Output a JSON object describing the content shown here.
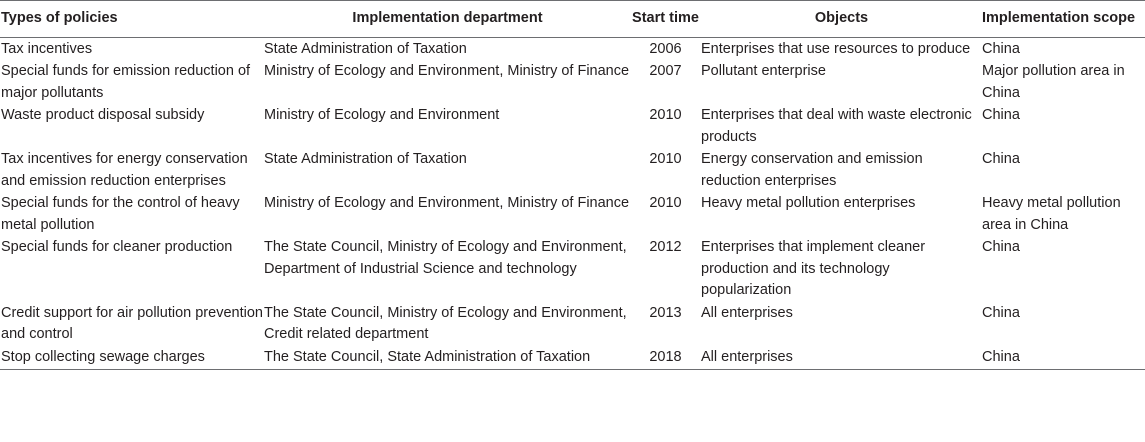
{
  "table": {
    "headers": {
      "type": "Types of policies",
      "department": "Implementation department",
      "start_time": "Start time",
      "objects": "Objects",
      "scope": "Implementation scope"
    },
    "rows": [
      {
        "type": "Tax incentives",
        "department": "State Administration of Taxation",
        "start_time": "2006",
        "objects": "Enterprises that use resources to produce",
        "scope": "China"
      },
      {
        "type": "Special funds for emission reduction of major pollutants",
        "department": "Ministry of Ecology and Environment, Ministry of Finance",
        "start_time": "2007",
        "objects": "Pollutant enterprise",
        "scope": "Major pollution area in China"
      },
      {
        "type": "Waste product disposal subsidy",
        "department": "Ministry of Ecology and Environment",
        "start_time": "2010",
        "objects": "Enterprises that deal with waste electronic products",
        "scope": "China"
      },
      {
        "type": "Tax incentives for energy conservation and emission reduction enterprises",
        "department": "State Administration of Taxation",
        "start_time": "2010",
        "objects": "Energy conservation and emission reduction enterprises",
        "scope": "China"
      },
      {
        "type": "Special funds for the control of heavy metal pollution",
        "department": "Ministry of Ecology and Environment, Ministry of Finance",
        "start_time": "2010",
        "objects": "Heavy metal pollution enterprises",
        "scope": "Heavy metal pollution area in China"
      },
      {
        "type": "Special funds for cleaner production",
        "department": "The State Council, Ministry of Ecology and Environment, Department of Industrial Science and technology",
        "start_time": "2012",
        "objects": "Enterprises that implement cleaner production and its technology popularization",
        "scope": "China"
      },
      {
        "type": "Credit support for air pollution prevention and control",
        "department": "The State Council, Ministry of Ecology and Environment, Credit related department",
        "start_time": "2013",
        "objects": "All enterprises",
        "scope": "China"
      },
      {
        "type": "Stop collecting sewage charges",
        "department": "The State Council, State Administration of Taxation",
        "start_time": "2018",
        "objects": "All enterprises",
        "scope": "China"
      }
    ]
  }
}
